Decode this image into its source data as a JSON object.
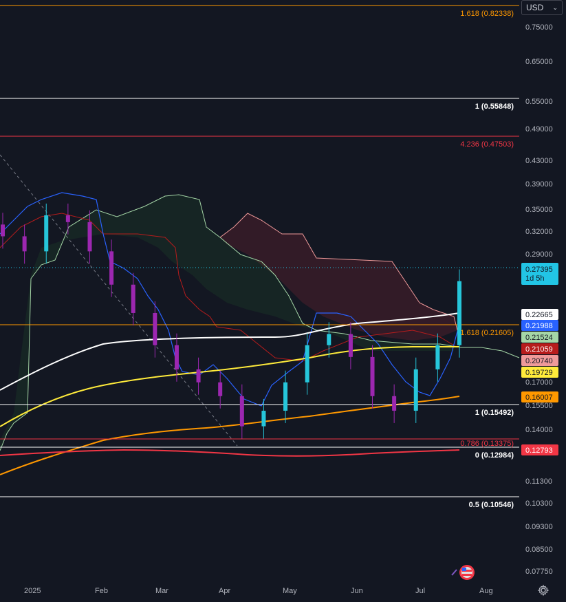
{
  "currency": {
    "label": "USD",
    "chevron": "⌄"
  },
  "price_axis": {
    "ticks": [
      "0.75000",
      "0.65000",
      "0.55000",
      "0.49000",
      "0.43000",
      "0.39000",
      "0.35000",
      "0.32000",
      "0.29000",
      "0.17000",
      "0.15500",
      "0.14000",
      "0.11300",
      "0.10300",
      "0.09300",
      "0.08500",
      "0.07750"
    ]
  },
  "time_axis": {
    "labels": [
      "2025",
      "Feb",
      "Mar",
      "Apr",
      "May",
      "Jun",
      "Jul",
      "Aug"
    ]
  },
  "fib_levels": [
    {
      "text": "1.618 (0.82338)",
      "color": "#ff9800"
    },
    {
      "text": "1 (0.55848)",
      "color": "#ffffff"
    },
    {
      "text": "4.236 (0.47503)",
      "color": "#f23645"
    },
    {
      "text": "1.618 (0.21605)",
      "color": "#ff9800"
    },
    {
      "text": "1 (0.15492)",
      "color": "#ffffff"
    },
    {
      "text": "0.786 (0.13375)",
      "color": "#f23645"
    },
    {
      "text": "0 (0.12984)",
      "color": "#ffffff"
    },
    {
      "text": "0.5 (0.10546)",
      "color": "#ffffff"
    }
  ],
  "price_badges": [
    {
      "value": "0.27395",
      "sub": "1d 5h",
      "bg": "#22c5e5",
      "fg": "#131722"
    },
    {
      "value": "0.22665",
      "bg": "#ffffff",
      "fg": "#131722"
    },
    {
      "value": "0.21988",
      "bg": "#2962ff",
      "fg": "#ffffff"
    },
    {
      "value": "0.21524",
      "bg": "#a5d6a7",
      "fg": "#131722"
    },
    {
      "value": "0.21059",
      "bg": "#b71c1c",
      "fg": "#ffffff"
    },
    {
      "value": "0.20740",
      "bg": "#ef9a9a",
      "fg": "#131722"
    },
    {
      "value": "0.19729",
      "bg": "#ffeb3b",
      "fg": "#131722"
    },
    {
      "value": "0.16007",
      "bg": "#ff9800",
      "fg": "#131722"
    },
    {
      "value": "0.12793",
      "bg": "#f23645",
      "fg": "#ffffff"
    }
  ],
  "colors": {
    "background": "#131722",
    "candle": "#9c27b0",
    "candle_up": "#26c6da",
    "ma200": "#ffffff",
    "ma_yellow": "#ffeb3b",
    "ma_orange": "#ff9800",
    "ma_red": "#f23645",
    "kijun": "#2962ff",
    "cloud_green": "#a5d6a7",
    "cloud_red": "#ef9a9a"
  },
  "icons": {
    "settings": "gear-icon",
    "logo": "flag-logo-icon"
  },
  "chart_data": {
    "type": "candlestick",
    "x": [
      "2025",
      "Feb",
      "Mar",
      "Apr",
      "May",
      "Jun",
      "Jul",
      "Aug"
    ],
    "close_series": [
      0.33,
      0.31,
      0.36,
      0.35,
      0.31,
      0.27,
      0.24,
      0.21,
      0.19,
      0.18,
      0.17,
      0.15,
      0.16,
      0.18,
      0.21,
      0.22,
      0.2,
      0.17,
      0.16,
      0.19,
      0.21,
      0.27395
    ],
    "last_price": 0.27395,
    "y_scale": "log",
    "ylim": [
      0.0755,
      0.86
    ]
  }
}
